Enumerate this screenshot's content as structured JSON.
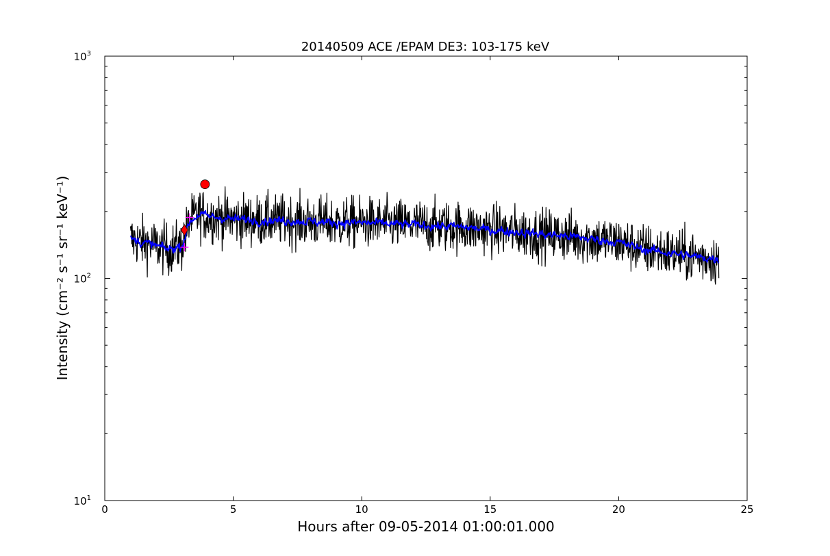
{
  "chart_data": {
    "type": "line",
    "title": "20140509 ACE /EPAM DE3: 103-175 keV",
    "xlabel": "Hours after 09-05-2014 01:00:01.000",
    "ylabel": "Intensity (cm⁻² s⁻¹ sr⁻¹ keV⁻¹)",
    "xlim": [
      0,
      25
    ],
    "ylim": [
      10,
      1000
    ],
    "yscale": "log",
    "grid": false,
    "x_ticks": [
      0,
      5,
      10,
      15,
      20,
      25
    ],
    "x_tick_labels": [
      "0",
      "5",
      "10",
      "15",
      "20",
      "25"
    ],
    "y_ticks": [
      {
        "base": "10",
        "exp": "1",
        "value": 10
      },
      {
        "base": "10",
        "exp": "2",
        "value": 100
      },
      {
        "base": "10",
        "exp": "3",
        "value": 1000
      }
    ],
    "series": [
      {
        "color": "#000000",
        "style": "raw",
        "anchors_x": [
          1.0,
          1.5,
          2.0,
          2.5,
          3.0,
          3.3,
          3.7,
          4.0,
          5.0,
          6.0,
          7.0,
          8.0,
          9.0,
          10.0,
          11.0,
          12.0,
          13.0,
          14.0,
          15.0,
          16.0,
          17.0,
          18.0,
          19.0,
          20.0,
          21.0,
          22.0,
          23.0,
          23.9
        ],
        "anchors_y": [
          150,
          145,
          140,
          135,
          140,
          180,
          195,
          190,
          185,
          182,
          182,
          180,
          178,
          178,
          176,
          174,
          172,
          170,
          165,
          162,
          158,
          155,
          150,
          145,
          135,
          130,
          125,
          122
        ],
        "noise_log": 0.19
      },
      {
        "color": "#0000ff",
        "style": "smoothed",
        "anchors_x": [
          1.0,
          1.5,
          2.0,
          2.5,
          3.0,
          3.3,
          3.7,
          4.0,
          5.0,
          6.0,
          7.0,
          8.0,
          9.0,
          10.0,
          11.0,
          12.0,
          13.0,
          14.0,
          15.0,
          16.0,
          17.0,
          18.0,
          19.0,
          20.0,
          21.0,
          22.0,
          23.0,
          23.9
        ],
        "anchors_y": [
          150,
          145,
          140,
          135,
          140,
          180,
          195,
          190,
          185,
          182,
          182,
          180,
          178,
          178,
          176,
          174,
          172,
          170,
          165,
          162,
          158,
          155,
          150,
          145,
          135,
          130,
          125,
          122
        ],
        "noise_log": 0.06
      }
    ],
    "markers": [
      {
        "x": 3.1,
        "y": 138,
        "shape": "plus",
        "color": "#ff00ff"
      },
      {
        "x": 3.3,
        "y": 188,
        "shape": "plus",
        "color": "#ff00ff"
      },
      {
        "x": 3.1,
        "y": 165,
        "shape": "diamond",
        "color": "#ff0000"
      },
      {
        "x": 3.9,
        "y": 265,
        "shape": "circle",
        "color": "#ff0000"
      }
    ]
  }
}
